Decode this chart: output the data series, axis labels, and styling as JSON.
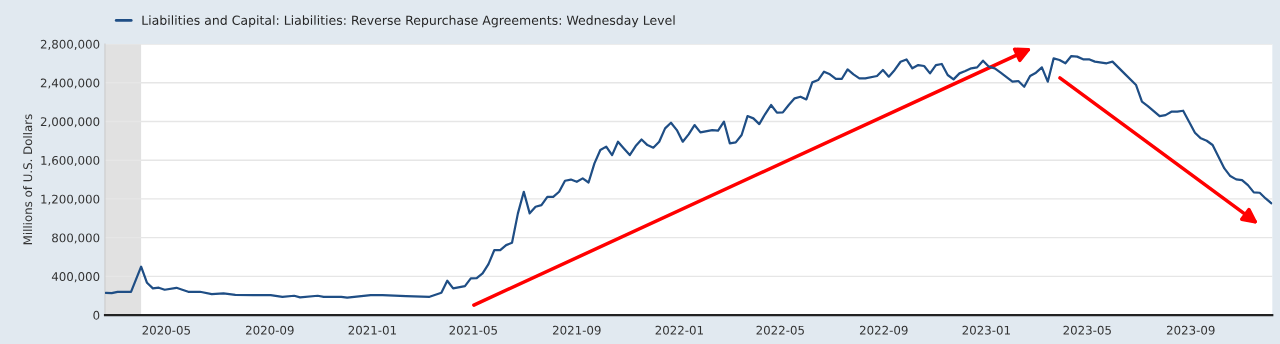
{
  "chart_data": {
    "type": "line",
    "ylabel": "Millions of U.S. Dollars",
    "x": [
      "2020-02-19",
      "2020-02-26",
      "2020-03-04",
      "2020-03-20",
      "2020-04-01",
      "2020-04-08",
      "2020-04-15",
      "2020-04-22",
      "2020-04-29",
      "2020-05-13",
      "2020-05-27",
      "2020-06-10",
      "2020-06-24",
      "2020-07-08",
      "2020-07-22",
      "2020-08-12",
      "2020-09-02",
      "2020-09-16",
      "2020-09-30",
      "2020-10-07",
      "2020-10-28",
      "2020-11-04",
      "2020-11-25",
      "2020-12-02",
      "2020-12-30",
      "2021-01-13",
      "2021-02-10",
      "2021-03-10",
      "2021-03-24",
      "2021-03-31",
      "2021-04-07",
      "2021-04-21",
      "2021-04-28",
      "2021-05-05",
      "2021-05-12",
      "2021-05-19",
      "2021-05-26",
      "2021-06-02",
      "2021-06-09",
      "2021-06-16",
      "2021-06-23",
      "2021-06-30",
      "2021-07-07",
      "2021-07-14",
      "2021-07-21",
      "2021-07-28",
      "2021-08-04",
      "2021-08-11",
      "2021-08-18",
      "2021-08-25",
      "2021-09-01",
      "2021-09-08",
      "2021-09-15",
      "2021-09-22",
      "2021-09-29",
      "2021-10-06",
      "2021-10-13",
      "2021-10-20",
      "2021-10-27",
      "2021-11-03",
      "2021-11-10",
      "2021-11-17",
      "2021-11-24",
      "2021-12-01",
      "2021-12-08",
      "2021-12-15",
      "2021-12-22",
      "2021-12-29",
      "2022-01-05",
      "2022-01-12",
      "2022-01-19",
      "2022-01-26",
      "2022-02-09",
      "2022-02-16",
      "2022-02-23",
      "2022-03-02",
      "2022-03-09",
      "2022-03-16",
      "2022-03-23",
      "2022-03-30",
      "2022-04-06",
      "2022-04-13",
      "2022-04-20",
      "2022-04-27",
      "2022-05-04",
      "2022-05-11",
      "2022-05-18",
      "2022-05-25",
      "2022-06-01",
      "2022-06-08",
      "2022-06-15",
      "2022-06-22",
      "2022-06-29",
      "2022-07-06",
      "2022-07-13",
      "2022-07-20",
      "2022-07-27",
      "2022-08-03",
      "2022-08-10",
      "2022-08-24",
      "2022-08-31",
      "2022-09-07",
      "2022-09-14",
      "2022-09-21",
      "2022-09-28",
      "2022-10-05",
      "2022-10-12",
      "2022-10-19",
      "2022-10-26",
      "2022-11-02",
      "2022-11-09",
      "2022-11-16",
      "2022-11-23",
      "2022-11-30",
      "2022-12-07",
      "2022-12-14",
      "2022-12-21",
      "2022-12-28",
      "2023-01-04",
      "2023-01-11",
      "2023-01-18",
      "2023-02-01",
      "2023-02-08",
      "2023-02-15",
      "2023-02-22",
      "2023-03-01",
      "2023-03-08",
      "2023-03-15",
      "2023-03-22",
      "2023-03-29",
      "2023-04-05",
      "2023-04-12",
      "2023-04-19",
      "2023-04-26",
      "2023-05-03",
      "2023-05-10",
      "2023-05-24",
      "2023-05-31",
      "2023-06-14",
      "2023-06-28",
      "2023-07-05",
      "2023-07-12",
      "2023-07-26",
      "2023-08-02",
      "2023-08-09",
      "2023-08-16",
      "2023-08-23",
      "2023-08-30",
      "2023-09-06",
      "2023-09-13",
      "2023-09-20",
      "2023-09-27",
      "2023-10-04",
      "2023-10-11",
      "2023-10-18",
      "2023-10-25",
      "2023-11-01",
      "2023-11-08",
      "2023-11-15",
      "2023-11-22",
      "2023-11-29",
      "2023-12-06"
    ],
    "series": [
      {
        "name": "Liabilities and Capital: Liabilities: Reverse Repurchase Agreements: Wednesday Level",
        "color": "#1f4e85",
        "values": [
          230000,
          227000,
          240000,
          240000,
          500000,
          334000,
          276000,
          283000,
          262000,
          282000,
          241000,
          241000,
          217000,
          224000,
          210000,
          207000,
          207000,
          189000,
          200000,
          183000,
          200000,
          189000,
          189000,
          180000,
          207000,
          207000,
          196000,
          189000,
          231000,
          355000,
          276000,
          300000,
          379000,
          383000,
          431000,
          527000,
          672000,
          672000,
          723000,
          747000,
          1051000,
          1274000,
          1051000,
          1119000,
          1136000,
          1222000,
          1222000,
          1274000,
          1388000,
          1400000,
          1377000,
          1412000,
          1370000,
          1567000,
          1705000,
          1740000,
          1653000,
          1791000,
          1722000,
          1653000,
          1746000,
          1814000,
          1756000,
          1729000,
          1791000,
          1929000,
          1987000,
          1911000,
          1791000,
          1867000,
          1963000,
          1887000,
          1911000,
          1905000,
          1998000,
          1774000,
          1784000,
          1860000,
          2056000,
          2032000,
          1973000,
          2077000,
          2170000,
          2091000,
          2094000,
          2170000,
          2239000,
          2256000,
          2228000,
          2404000,
          2428000,
          2514000,
          2487000,
          2439000,
          2439000,
          2538000,
          2487000,
          2446000,
          2446000,
          2470000,
          2532000,
          2463000,
          2532000,
          2617000,
          2641000,
          2549000,
          2583000,
          2573000,
          2497000,
          2583000,
          2594000,
          2480000,
          2435000,
          2497000,
          2521000,
          2549000,
          2559000,
          2628000,
          2566000,
          2549000,
          2504000,
          2411000,
          2418000,
          2359000,
          2470000,
          2504000,
          2559000,
          2411000,
          2652000,
          2635000,
          2601000,
          2676000,
          2670000,
          2642000,
          2642000,
          2618000,
          2601000,
          2618000,
          2497000,
          2376000,
          2204000,
          2159000,
          2056000,
          2066000,
          2101000,
          2101000,
          2111000,
          1998000,
          1884000,
          1826000,
          1801000,
          1757000,
          1636000,
          1515000,
          1436000,
          1402000,
          1395000,
          1343000,
          1268000,
          1264000,
          1205000,
          1154000
        ]
      }
    ],
    "xlim": [
      "2020-02-18",
      "2023-12-07"
    ],
    "xticks": [
      {
        "value": "2020-05-01",
        "label": "2020-05"
      },
      {
        "value": "2020-09-01",
        "label": "2020-09"
      },
      {
        "value": "2021-01-01",
        "label": "2021-01"
      },
      {
        "value": "2021-05-01",
        "label": "2021-05"
      },
      {
        "value": "2021-09-01",
        "label": "2021-09"
      },
      {
        "value": "2022-01-01",
        "label": "2022-01"
      },
      {
        "value": "2022-05-01",
        "label": "2022-05"
      },
      {
        "value": "2022-09-01",
        "label": "2022-09"
      },
      {
        "value": "2023-01-01",
        "label": "2023-01"
      },
      {
        "value": "2023-05-01",
        "label": "2023-05"
      },
      {
        "value": "2023-09-01",
        "label": "2023-09"
      }
    ],
    "ylim": [
      0,
      2800000
    ],
    "yticks": [
      0,
      {
        "value": 400000,
        "label": "400,000"
      },
      {
        "value": 800000,
        "label": "800,000"
      },
      {
        "value": 1200000,
        "label": "1,200,000"
      },
      {
        "value": 1600000,
        "label": "1,600,000"
      },
      {
        "value": 2000000,
        "label": "2,000,000"
      },
      {
        "value": 2400000,
        "label": "2,400,000"
      },
      {
        "value": 2800000,
        "label": "2,800,000"
      }
    ],
    "bands": [
      {
        "axis": "x",
        "from": "2020-02-18",
        "to": "2020-04-01",
        "color": "#e1e1e1"
      }
    ],
    "grid": "y",
    "legend": "top left",
    "marker": "none",
    "line_style": "solid"
  }
}
